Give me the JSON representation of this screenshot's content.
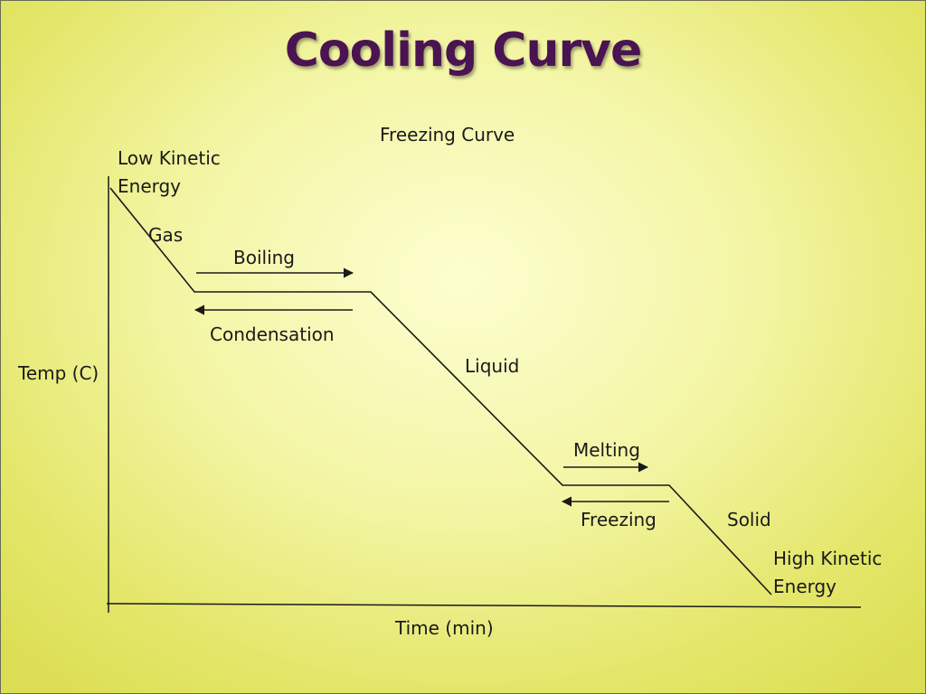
{
  "slide": {
    "title": "Cooling Curve"
  },
  "diagram": {
    "subtitle": "Freezing Curve",
    "y_axis_label": "Temp (C)",
    "x_axis_label": "Time (min)",
    "top_label_line1": "Low Kinetic",
    "top_label_line2": "Energy",
    "bottom_label_line1": "High Kinetic",
    "bottom_label_line2": "Energy",
    "phases": {
      "gas": "Gas",
      "liquid": "Liquid",
      "solid": "Solid"
    },
    "transitions": {
      "boiling": "Boiling",
      "condensation": "Condensation",
      "melting": "Melting",
      "freezing": "Freezing"
    }
  },
  "colors": {
    "title": "#4a1452",
    "line": "#1a1a1a",
    "background_center": "#fdfed0",
    "background_edge": "#dcdf55"
  }
}
